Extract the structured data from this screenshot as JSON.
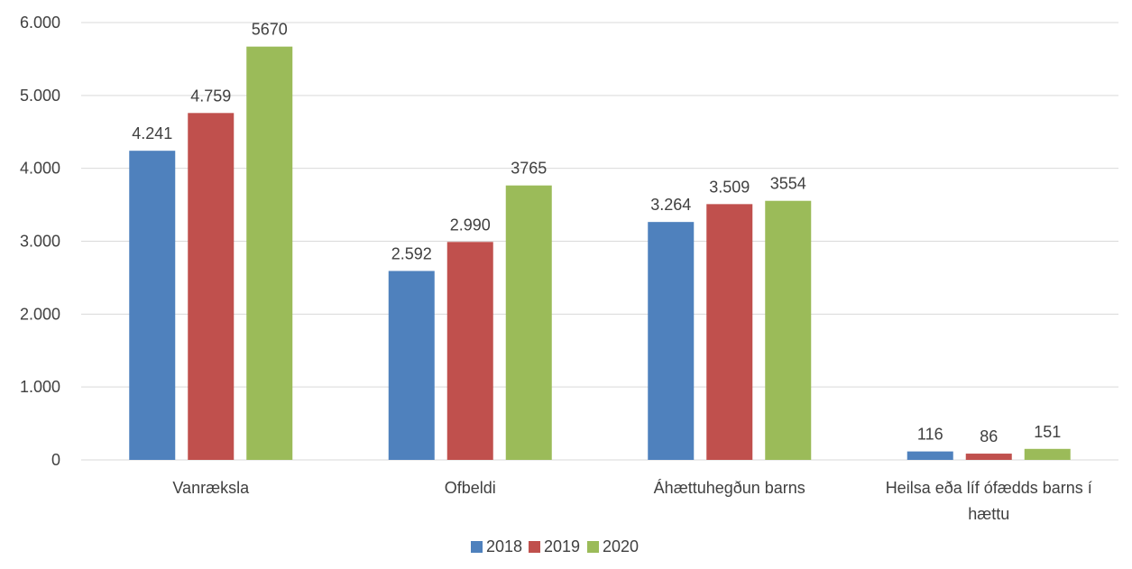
{
  "chart_data": {
    "type": "bar",
    "title": "",
    "xlabel": "",
    "ylabel": "",
    "ylim": [
      0,
      6000
    ],
    "yticks": [
      {
        "value": 0,
        "label": "0"
      },
      {
        "value": 1000,
        "label": "1.000"
      },
      {
        "value": 2000,
        "label": "2.000"
      },
      {
        "value": 3000,
        "label": "3.000"
      },
      {
        "value": 4000,
        "label": "4.000"
      },
      {
        "value": 5000,
        "label": "5.000"
      },
      {
        "value": 6000,
        "label": "6.000"
      }
    ],
    "grid": true,
    "legend_position": "bottom",
    "categories": [
      [
        "Vanræksla"
      ],
      [
        "Ofbeldi"
      ],
      [
        "Áhættuhegðun barns"
      ],
      [
        "Heilsa eða líf ófædds barns í",
        "hættu"
      ]
    ],
    "series": [
      {
        "name": "2018",
        "color": "#4f81bd",
        "values": [
          4241,
          2592,
          3264,
          116
        ],
        "labels": [
          "4.241",
          "2.592",
          "3.264",
          "116"
        ]
      },
      {
        "name": "2019",
        "color": "#c0504d",
        "values": [
          4759,
          2990,
          3509,
          86
        ],
        "labels": [
          "4.759",
          "2.990",
          "3.509",
          "86"
        ]
      },
      {
        "name": "2020",
        "color": "#9bbb59",
        "values": [
          5670,
          3765,
          3554,
          151
        ],
        "labels": [
          "5670",
          "3765",
          "3554",
          "151"
        ]
      }
    ]
  }
}
